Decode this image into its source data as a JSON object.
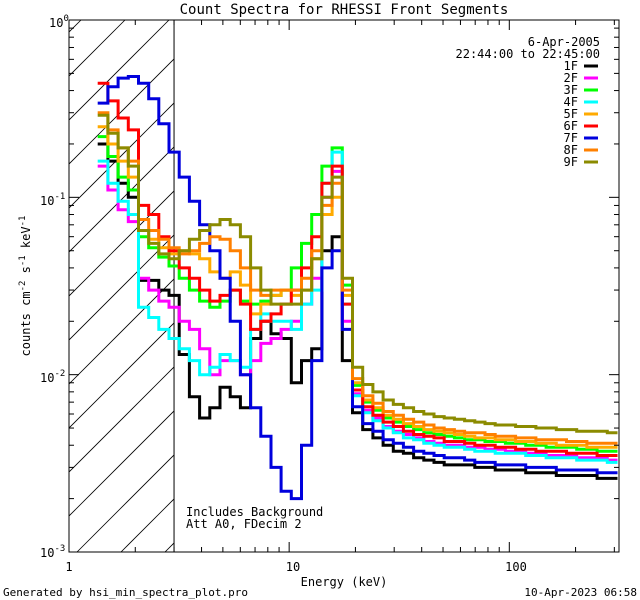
{
  "chart_data": {
    "type": "line",
    "title": "Count Spectra for RHESSI Front Segments",
    "xlabel": "Energy (keV)",
    "ylabel_parts": {
      "a": "counts cm",
      "b": "-2",
      "c": " s",
      "d": "-1",
      "e": " keV",
      "f": "-1"
    },
    "xscale": "log",
    "yscale": "log",
    "xlim": [
      1.0,
      315
    ],
    "ylim": [
      0.001,
      1.0
    ],
    "x_ticks": [
      {
        "value": 1,
        "label": "1"
      },
      {
        "value": 10,
        "label": "10"
      },
      {
        "value": 100,
        "label": "100"
      }
    ],
    "y_ticks": [
      {
        "value": 1,
        "base": "10",
        "exp": "0"
      },
      {
        "value": 0.1,
        "base": "10",
        "exp": "-1"
      },
      {
        "value": 0.01,
        "base": "10",
        "exp": "-2"
      },
      {
        "value": 0.001,
        "base": "10",
        "exp": "-3"
      }
    ],
    "date": "6-Apr-2005",
    "time_range": "22:44:00 to 22:45:00",
    "annotation_lines": [
      "Includes Background",
      "Att A0, FDecim 2"
    ],
    "hatched_region_max_keV": 3.0,
    "legend_position": "top-right",
    "series": [
      {
        "name": "1F",
        "color": "#000000",
        "values": [
          0.2,
          0.16,
          0.12,
          0.1,
          0.034,
          0.034,
          0.03,
          0.028,
          0.013,
          0.0075,
          0.0057,
          0.0065,
          0.0085,
          0.0075,
          0.0065,
          0.016,
          0.02,
          0.017,
          0.016,
          0.009,
          0.012,
          0.014,
          0.05,
          0.06,
          0.012,
          0.0061,
          0.0049,
          0.0044,
          0.004,
          0.0037,
          0.0036,
          0.0034,
          0.0033,
          0.0032,
          0.0031,
          0.0031,
          0.0031,
          0.003,
          0.003,
          0.0029,
          0.0029,
          0.0029,
          0.0028,
          0.0028,
          0.0028,
          0.0027,
          0.0027,
          0.0027,
          0.0027,
          0.0026,
          0.0026
        ]
      },
      {
        "name": "2F",
        "color": "#ff00ff",
        "values": [
          0.15,
          0.11,
          0.085,
          0.073,
          0.035,
          0.03,
          0.026,
          0.024,
          0.02,
          0.018,
          0.014,
          0.01,
          0.012,
          0.012,
          0.01,
          0.012,
          0.015,
          0.016,
          0.018,
          0.02,
          0.025,
          0.035,
          0.1,
          0.14,
          0.02,
          0.0078,
          0.0063,
          0.0057,
          0.0051,
          0.0048,
          0.0046,
          0.0044,
          0.0042,
          0.0041,
          0.004,
          0.004,
          0.0039,
          0.0039,
          0.0038,
          0.0038,
          0.0037,
          0.0037,
          0.0036,
          0.0036,
          0.0035,
          0.0035,
          0.0035,
          0.0034,
          0.0034,
          0.0034,
          0.0033
        ]
      },
      {
        "name": "3F",
        "color": "#00ff00",
        "values": [
          0.22,
          0.17,
          0.13,
          0.11,
          0.06,
          0.052,
          0.046,
          0.041,
          0.035,
          0.03,
          0.026,
          0.024,
          0.026,
          0.03,
          0.026,
          0.025,
          0.026,
          0.028,
          0.03,
          0.04,
          0.055,
          0.08,
          0.15,
          0.19,
          0.032,
          0.0087,
          0.007,
          0.0063,
          0.0057,
          0.0054,
          0.0051,
          0.0049,
          0.0047,
          0.0046,
          0.0045,
          0.0044,
          0.0043,
          0.0043,
          0.0042,
          0.0042,
          0.0041,
          0.0041,
          0.004,
          0.004,
          0.0039,
          0.0039,
          0.0039,
          0.0038,
          0.0038,
          0.0037,
          0.0037
        ]
      },
      {
        "name": "4F",
        "color": "#00ffff",
        "values": [
          0.16,
          0.12,
          0.095,
          0.08,
          0.024,
          0.021,
          0.018,
          0.016,
          0.014,
          0.012,
          0.01,
          0.011,
          0.013,
          0.012,
          0.011,
          0.018,
          0.022,
          0.02,
          0.02,
          0.018,
          0.025,
          0.03,
          0.12,
          0.18,
          0.025,
          0.0076,
          0.0061,
          0.0055,
          0.005,
          0.0047,
          0.0044,
          0.0043,
          0.0041,
          0.004,
          0.0039,
          0.0039,
          0.0038,
          0.0037,
          0.0037,
          0.0036,
          0.0036,
          0.0036,
          0.0035,
          0.0035,
          0.0034,
          0.0034,
          0.0034,
          0.0033,
          0.0033,
          0.0033,
          0.0032
        ]
      },
      {
        "name": "5F",
        "color": "#ffaa00",
        "values": [
          0.25,
          0.2,
          0.16,
          0.13,
          0.065,
          0.058,
          0.052,
          0.048,
          0.05,
          0.048,
          0.045,
          0.038,
          0.035,
          0.038,
          0.032,
          0.022,
          0.025,
          0.028,
          0.03,
          0.028,
          0.03,
          0.045,
          0.08,
          0.1,
          0.028,
          0.009,
          0.0072,
          0.0065,
          0.0059,
          0.0056,
          0.0053,
          0.0051,
          0.0049,
          0.0048,
          0.0047,
          0.0046,
          0.0045,
          0.0044,
          0.0044,
          0.0043,
          0.0043,
          0.0042,
          0.0042,
          0.0041,
          0.0041,
          0.004,
          0.004,
          0.004,
          0.0039,
          0.0039,
          0.0039
        ]
      },
      {
        "name": "6F",
        "color": "#ff0000",
        "values": [
          0.44,
          0.35,
          0.28,
          0.24,
          0.09,
          0.08,
          0.06,
          0.05,
          0.04,
          0.035,
          0.03,
          0.026,
          0.028,
          0.03,
          0.025,
          0.018,
          0.02,
          0.022,
          0.025,
          0.03,
          0.04,
          0.06,
          0.12,
          0.15,
          0.025,
          0.0082,
          0.0066,
          0.0059,
          0.0054,
          0.0051,
          0.0048,
          0.0046,
          0.0045,
          0.0044,
          0.0042,
          0.0042,
          0.0041,
          0.004,
          0.004,
          0.0039,
          0.0039,
          0.0038,
          0.0038,
          0.0037,
          0.0037,
          0.0037,
          0.0036,
          0.0036,
          0.0036,
          0.0035,
          0.0035
        ]
      },
      {
        "name": "7F",
        "color": "#0000dd",
        "values": [
          0.34,
          0.42,
          0.47,
          0.48,
          0.44,
          0.36,
          0.26,
          0.18,
          0.13,
          0.095,
          0.07,
          0.05,
          0.035,
          0.02,
          0.01,
          0.0065,
          0.0045,
          0.003,
          0.0022,
          0.002,
          0.004,
          0.012,
          0.04,
          0.05,
          0.018,
          0.0066,
          0.0053,
          0.0048,
          0.0043,
          0.0041,
          0.0039,
          0.0037,
          0.0036,
          0.0035,
          0.0034,
          0.0034,
          0.0033,
          0.0032,
          0.0032,
          0.0031,
          0.0031,
          0.0031,
          0.003,
          0.003,
          0.003,
          0.0029,
          0.0029,
          0.0029,
          0.0029,
          0.0028,
          0.0028
        ]
      },
      {
        "name": "8F",
        "color": "#ff8000",
        "values": [
          0.3,
          0.24,
          0.19,
          0.16,
          0.075,
          0.065,
          0.058,
          0.052,
          0.048,
          0.05,
          0.055,
          0.06,
          0.058,
          0.05,
          0.04,
          0.03,
          0.028,
          0.03,
          0.03,
          0.03,
          0.035,
          0.05,
          0.09,
          0.12,
          0.03,
          0.0095,
          0.0076,
          0.0069,
          0.0062,
          0.0059,
          0.0056,
          0.0054,
          0.0052,
          0.005,
          0.0049,
          0.0048,
          0.0047,
          0.0047,
          0.0046,
          0.0045,
          0.0045,
          0.0044,
          0.0044,
          0.0043,
          0.0043,
          0.0043,
          0.0042,
          0.0042,
          0.0041,
          0.0041,
          0.0041
        ]
      },
      {
        "name": "9F",
        "color": "#8b8b00",
        "values": [
          0.29,
          0.23,
          0.19,
          0.15,
          0.065,
          0.055,
          0.048,
          0.045,
          0.05,
          0.058,
          0.065,
          0.07,
          0.075,
          0.07,
          0.06,
          0.04,
          0.03,
          0.025,
          0.025,
          0.025,
          0.03,
          0.045,
          0.1,
          0.13,
          0.035,
          0.011,
          0.0088,
          0.008,
          0.0072,
          0.0068,
          0.0065,
          0.0062,
          0.006,
          0.0058,
          0.0057,
          0.0056,
          0.0055,
          0.0054,
          0.0053,
          0.0052,
          0.0052,
          0.0051,
          0.0051,
          0.005,
          0.005,
          0.0049,
          0.0049,
          0.0048,
          0.0048,
          0.0048,
          0.0047
        ]
      }
    ]
  },
  "footer": {
    "generated_by": "Generated by hsi_min_spectra_plot.pro",
    "generated_at": "10-Apr-2023 06:58"
  }
}
